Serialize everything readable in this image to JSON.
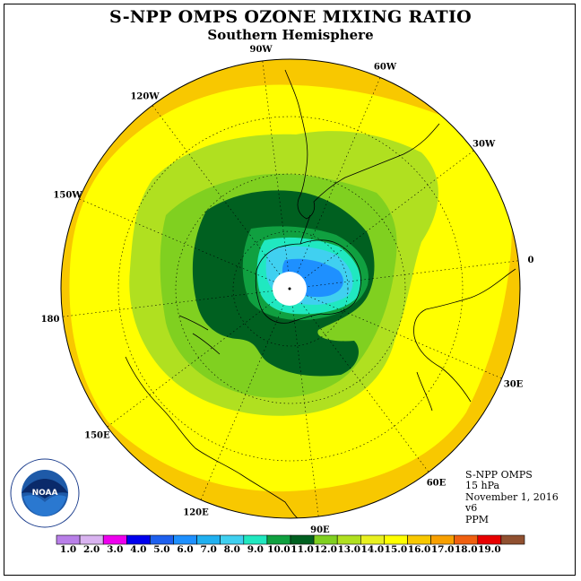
{
  "header": {
    "title": "S-NPP OMPS OZONE MIXING RATIO",
    "subtitle": "Southern Hemisphere"
  },
  "longitude_labels": [
    {
      "text": "90W",
      "deg": -90
    },
    {
      "text": "60W",
      "deg": -60
    },
    {
      "text": "30W",
      "deg": -30
    },
    {
      "text": "0",
      "deg": 0
    },
    {
      "text": "30E",
      "deg": 30
    },
    {
      "text": "60E",
      "deg": 60
    },
    {
      "text": "90E",
      "deg": 90
    },
    {
      "text": "120E",
      "deg": 120
    },
    {
      "text": "150E",
      "deg": 150
    },
    {
      "text": "180",
      "deg": 180
    },
    {
      "text": "150W",
      "deg": -150
    },
    {
      "text": "120W",
      "deg": -120
    }
  ],
  "info": {
    "instrument": "S-NPP OMPS",
    "level": "15 hPa",
    "date": "November 1, 2016",
    "version": "v6",
    "units": "PPM"
  },
  "colorbar": {
    "labels": [
      "1.0",
      "2.0",
      "3.0",
      "4.0",
      "5.0",
      "6.0",
      "7.0",
      "8.0",
      "9.0",
      "10.0",
      "11.0",
      "12.0",
      "13.0",
      "14.0",
      "15.0",
      "16.0",
      "17.0",
      "18.0",
      "19.0"
    ],
    "colors": [
      "#b87fe8",
      "#d9b3f0",
      "#ee00ee",
      "#0000ee",
      "#1e60ee",
      "#1e90ff",
      "#20b0f0",
      "#40d0f0",
      "#20e8c0",
      "#10a040",
      "#006020",
      "#80d020",
      "#b0e020",
      "#e8f020",
      "#ffff00",
      "#f8c800",
      "#f8a000",
      "#f06010",
      "#e80000",
      "#905030"
    ]
  },
  "logo": {
    "text": "NOAA",
    "ring_text": "NATIONAL OCEANIC AND ATMOSPHERIC ADMINISTRATION · U.S. DEPARTMENT OF COMMERCE"
  },
  "colors": {
    "yellow": "#ffff00",
    "orange": "#f8c800",
    "light_green": "#b0e020",
    "green": "#80d020",
    "dark_green": "#10a040",
    "darkest_green": "#006020",
    "cyan": "#20e8c0",
    "blue": "#20b0f0"
  }
}
